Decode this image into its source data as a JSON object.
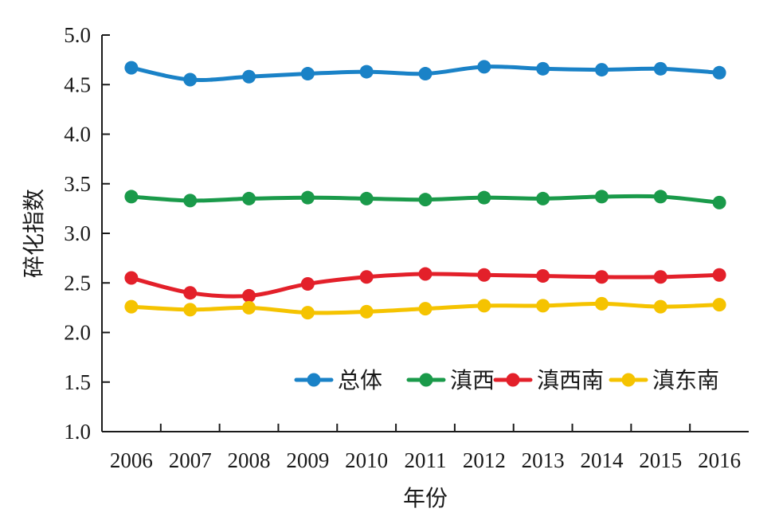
{
  "chart_data": {
    "type": "line",
    "xlabel": "年份",
    "ylabel": "碎化指数",
    "categories": [
      "2006",
      "2007",
      "2008",
      "2009",
      "2010",
      "2011",
      "2012",
      "2013",
      "2014",
      "2015",
      "2016"
    ],
    "ylim": [
      1.0,
      5.0
    ],
    "yticks": [
      "1.0",
      "1.5",
      "2.0",
      "2.5",
      "3.0",
      "3.5",
      "4.0",
      "4.5",
      "5.0"
    ],
    "grid": false,
    "legend_position": "lower-right",
    "series": [
      {
        "name": "总体",
        "color": "#1a82c7",
        "values": [
          4.67,
          4.55,
          4.58,
          4.61,
          4.63,
          4.61,
          4.68,
          4.66,
          4.65,
          4.66,
          4.62
        ]
      },
      {
        "name": "滇西",
        "color": "#1a9a4a",
        "values": [
          3.37,
          3.33,
          3.35,
          3.36,
          3.35,
          3.34,
          3.36,
          3.35,
          3.37,
          3.37,
          3.31
        ]
      },
      {
        "name": "滇西南",
        "color": "#e3202a",
        "values": [
          2.55,
          2.4,
          2.37,
          2.49,
          2.56,
          2.59,
          2.58,
          2.57,
          2.56,
          2.56,
          2.58
        ]
      },
      {
        "name": "滇东南",
        "color": "#f5c300",
        "values": [
          2.26,
          2.23,
          2.25,
          2.2,
          2.21,
          2.24,
          2.27,
          2.27,
          2.29,
          2.26,
          2.28
        ]
      }
    ]
  }
}
